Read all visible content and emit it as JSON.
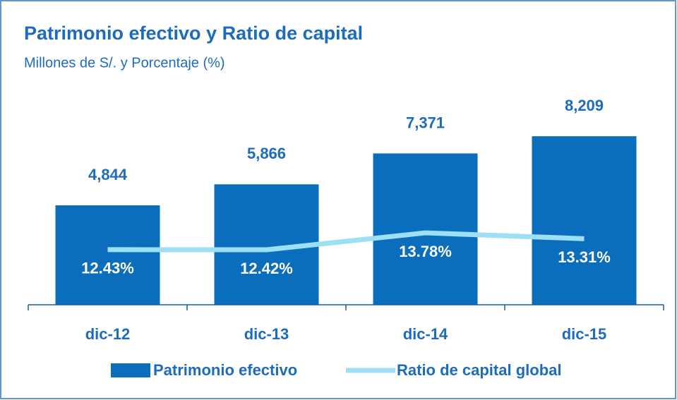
{
  "chart_data": {
    "type": "bar-line",
    "title": "Patrimonio efectivo y Ratio de capital",
    "subtitle": "Millones de S/. y Porcentaje (%)",
    "categories": [
      "dic-12",
      "dic-13",
      "dic-14",
      "dic-15"
    ],
    "series": [
      {
        "name": "Patrimonio efectivo",
        "type": "bar",
        "color": "#0a6ebd",
        "values": [
          4844,
          5866,
          7371,
          8209
        ],
        "value_labels": [
          "4,844",
          "5,866",
          "7,371",
          "8,209"
        ]
      },
      {
        "name": "Ratio de capital global",
        "type": "line",
        "axis": "y2",
        "color": "#9ddff5",
        "values": [
          12.43,
          12.42,
          13.78,
          13.31
        ],
        "value_labels": [
          "12.43%",
          "12.42%",
          "13.78%",
          "13.31%"
        ]
      }
    ],
    "ylim": [
      0,
      10000
    ],
    "y2lim": [
      8,
      24.5
    ],
    "legend": "bottom"
  }
}
